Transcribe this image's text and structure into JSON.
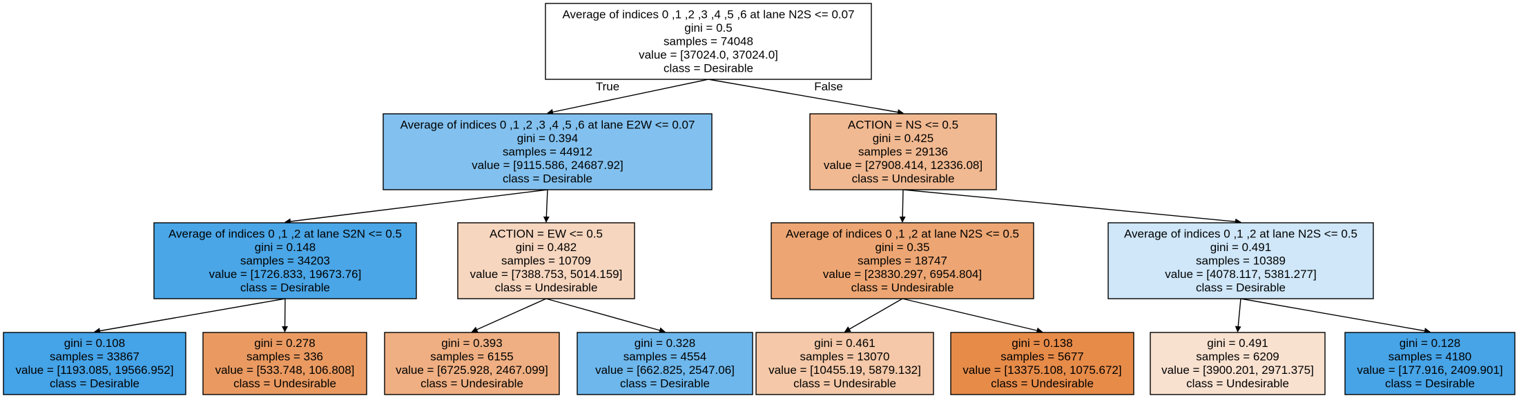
{
  "tree": {
    "nodes": [
      {
        "id": "n0",
        "lines": [
          "Average of indices 0 ,1 ,2 ,3 ,4 ,5 ,6 at lane N2S <= 0.07",
          "gini = 0.5",
          "samples = 74048",
          "value = [37024.0, 37024.0]",
          "class = Desirable"
        ],
        "fill": "#ffffff"
      },
      {
        "id": "n1",
        "lines": [
          "Average of indices 0 ,1 ,2 ,3 ,4 ,5 ,6 at lane E2W <= 0.07",
          "gini = 0.394",
          "samples = 44912",
          "value = [9115.586, 24687.92]",
          "class = Desirable"
        ],
        "fill": "#82c1ef"
      },
      {
        "id": "n2",
        "lines": [
          "ACTION = NS <= 0.5",
          "gini = 0.425",
          "samples = 29136",
          "value = [27908.414, 12336.08]",
          "class = Undesirable"
        ],
        "fill": "#f1b991"
      },
      {
        "id": "n3",
        "lines": [
          "Average of indices 0 ,1 ,2 at lane S2N <= 0.5",
          "gini = 0.148",
          "samples = 34203",
          "value = [1726.833, 19673.76]",
          "class = Desirable"
        ],
        "fill": "#4aa6e7"
      },
      {
        "id": "n4",
        "lines": [
          "ACTION = EW <= 0.5",
          "gini = 0.482",
          "samples = 10709",
          "value = [7388.753, 5014.159]",
          "class = Undesirable"
        ],
        "fill": "#f7d6bf"
      },
      {
        "id": "n5",
        "lines": [
          "Average of indices 0 ,1 ,2 at lane N2S <= 0.5",
          "gini = 0.35",
          "samples = 18747",
          "value = [23830.297, 6954.804]",
          "class = Undesirable"
        ],
        "fill": "#eda673"
      },
      {
        "id": "n6",
        "lines": [
          "Average of indices 0 ,1 ,2 at lane N2S <= 0.5",
          "gini = 0.491",
          "samples = 10389",
          "value = [4078.117, 5381.277]",
          "class = Desirable"
        ],
        "fill": "#cfe7f9"
      },
      {
        "id": "n7",
        "lines": [
          "gini = 0.108",
          "samples = 33867",
          "value = [1193.085, 19566.952]",
          "class = Desirable"
        ],
        "fill": "#45a3e7"
      },
      {
        "id": "n8",
        "lines": [
          "gini = 0.278",
          "samples = 336",
          "value = [533.748, 106.808]",
          "class = Undesirable"
        ],
        "fill": "#ea9a61"
      },
      {
        "id": "n9",
        "lines": [
          "gini = 0.393",
          "samples = 6155",
          "value = [6725.928, 2467.099]",
          "class = Undesirable"
        ],
        "fill": "#efaf82"
      },
      {
        "id": "n10",
        "lines": [
          "gini = 0.328",
          "samples = 4554",
          "value = [662.825, 2547.06]",
          "class = Desirable"
        ],
        "fill": "#6db7ec"
      },
      {
        "id": "n11",
        "lines": [
          "gini = 0.461",
          "samples = 13070",
          "value = [10455.19, 5879.132]",
          "class = Undesirable"
        ],
        "fill": "#f4c8a8"
      },
      {
        "id": "n12",
        "lines": [
          "gini = 0.138",
          "samples = 5677",
          "value = [13375.108, 1075.672]",
          "class = Undesirable"
        ],
        "fill": "#e78b49"
      },
      {
        "id": "n13",
        "lines": [
          "gini = 0.491",
          "samples = 6209",
          "value = [3900.201, 2971.375]",
          "class = Undesirable"
        ],
        "fill": "#f9e1d0"
      },
      {
        "id": "n14",
        "lines": [
          "gini = 0.128",
          "samples = 4180",
          "value = [177.916, 2409.901]",
          "class = Desirable"
        ],
        "fill": "#47a4e7"
      }
    ],
    "edges": [
      {
        "from": "n0",
        "to": "n1",
        "label": "True"
      },
      {
        "from": "n0",
        "to": "n2",
        "label": "False"
      },
      {
        "from": "n1",
        "to": "n3",
        "label": ""
      },
      {
        "from": "n1",
        "to": "n4",
        "label": ""
      },
      {
        "from": "n2",
        "to": "n5",
        "label": ""
      },
      {
        "from": "n2",
        "to": "n6",
        "label": ""
      },
      {
        "from": "n3",
        "to": "n7",
        "label": ""
      },
      {
        "from": "n3",
        "to": "n8",
        "label": ""
      },
      {
        "from": "n4",
        "to": "n9",
        "label": ""
      },
      {
        "from": "n4",
        "to": "n10",
        "label": ""
      },
      {
        "from": "n5",
        "to": "n11",
        "label": ""
      },
      {
        "from": "n5",
        "to": "n12",
        "label": ""
      },
      {
        "from": "n6",
        "to": "n13",
        "label": ""
      },
      {
        "from": "n6",
        "to": "n14",
        "label": ""
      }
    ]
  }
}
